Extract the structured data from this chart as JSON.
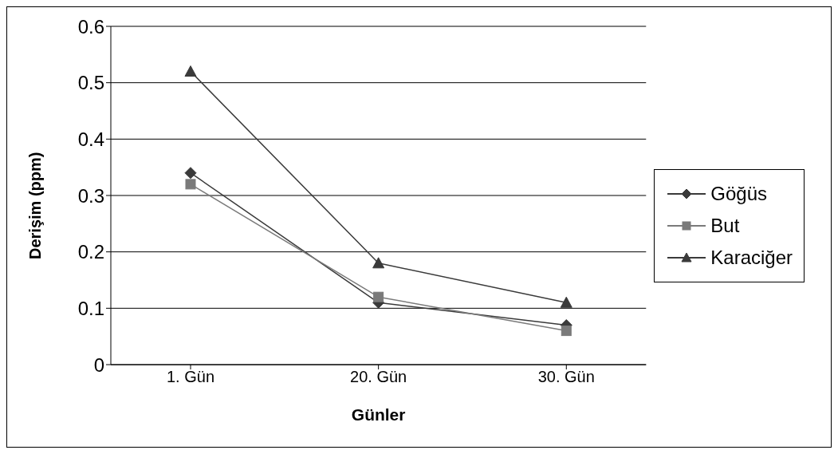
{
  "chart_data": {
    "type": "line",
    "xlabel": "Günler",
    "ylabel": "Derişim (ppm)",
    "categories": [
      "1. Gün",
      "20. Gün",
      "30. Gün"
    ],
    "series": [
      {
        "name": "Göğüs",
        "color": "#3a3a3a",
        "marker": "diamond",
        "values": [
          0.34,
          0.11,
          0.07
        ]
      },
      {
        "name": "But",
        "color": "#7a7a7a",
        "marker": "square",
        "values": [
          0.32,
          0.12,
          0.06
        ]
      },
      {
        "name": "Karaciğer",
        "color": "#3a3a3a",
        "marker": "triangle",
        "values": [
          0.52,
          0.18,
          0.11
        ]
      }
    ],
    "ylim": [
      0,
      0.6
    ],
    "yticks": [
      0,
      0.1,
      0.2,
      0.3,
      0.4,
      0.5,
      0.6
    ],
    "grid": "y",
    "legend": "right"
  }
}
